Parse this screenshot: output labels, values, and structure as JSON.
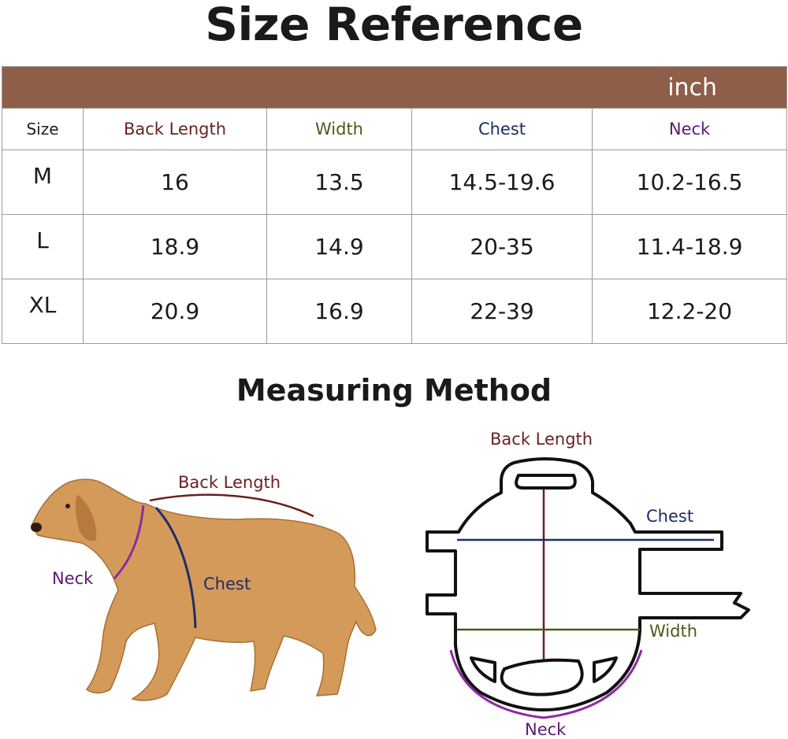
{
  "title": "Size Reference",
  "unit": "inch",
  "table": {
    "headers": [
      "Size",
      "Back Length",
      "Width",
      "Chest",
      "Neck"
    ],
    "rows": [
      [
        "M",
        "16",
        "13.5",
        "14.5-19.6",
        "10.2-16.5"
      ],
      [
        "L",
        "18.9",
        "14.9",
        "20-35",
        "11.4-18.9"
      ],
      [
        "XL",
        "20.9",
        "16.9",
        "22-39",
        "12.2-20"
      ]
    ]
  },
  "measuring": {
    "title": "Measuring Method",
    "dog_labels": {
      "back_length": "Back Length",
      "neck": "Neck",
      "chest": "Chest"
    },
    "garment_labels": {
      "back_length": "Back Length",
      "chest": "Chest",
      "width": "Width",
      "neck": "Neck"
    }
  },
  "colors": {
    "band": "#8f5e48",
    "back_length": "#6b1f1f",
    "width": "#4f5a18",
    "chest": "#1f2d66",
    "neck": "#5b1a73"
  }
}
